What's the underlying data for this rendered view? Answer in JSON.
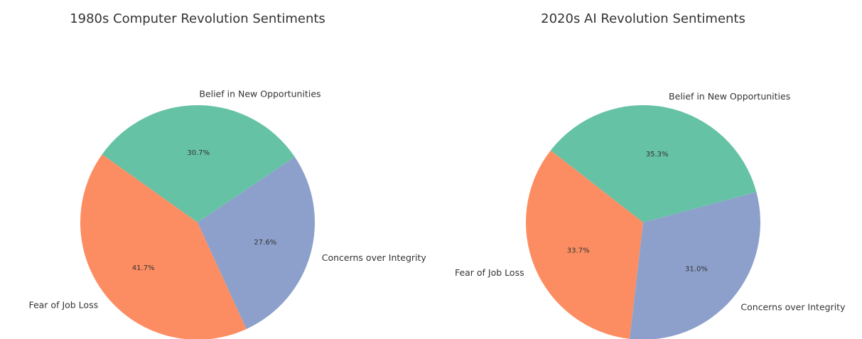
{
  "chart_data": [
    {
      "type": "pie",
      "title": "1980s Computer Revolution Sentiments",
      "labels": [
        "Belief in New Opportunities",
        "Fear of Job Loss",
        "Concerns over Integrity"
      ],
      "values": [
        30.7,
        41.7,
        27.6
      ],
      "value_labels": [
        "30.7%",
        "41.7%",
        "27.6%"
      ],
      "colors": [
        "#66c2a5",
        "#fc8d62",
        "#8da0cb"
      ],
      "start_angle_deg": 34,
      "direction": "counterclockwise"
    },
    {
      "type": "pie",
      "title": "2020s AI Revolution Sentiments",
      "labels": [
        "Belief in New Opportunities",
        "Fear of Job Loss",
        "Concerns over Integrity"
      ],
      "values": [
        35.3,
        33.7,
        31.0
      ],
      "value_labels": [
        "35.3%",
        "33.7%",
        "31.0%"
      ],
      "colors": [
        "#66c2a5",
        "#fc8d62",
        "#8da0cb"
      ],
      "start_angle_deg": 15,
      "direction": "counterclockwise"
    }
  ]
}
